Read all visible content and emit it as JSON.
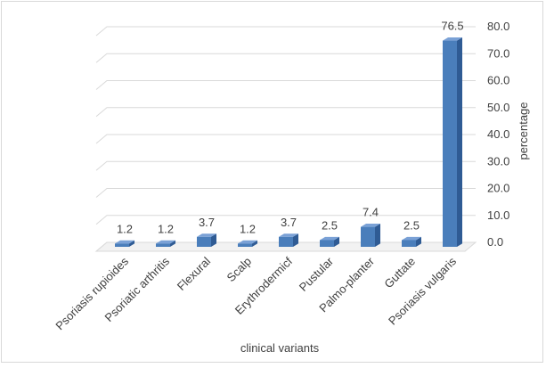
{
  "chart_data": {
    "type": "bar",
    "categories": [
      "Psoriasis rupioides",
      "Psoriatic arthritis",
      "Flexural",
      "Scalp",
      "Erythrodermicf",
      "Pustular",
      "Palmo-planter",
      "Guttate",
      "Psoriasis vulgaris"
    ],
    "values": [
      1.2,
      1.2,
      3.7,
      1.2,
      3.7,
      2.5,
      7.4,
      2.5,
      76.5
    ],
    "data_labels": [
      "1.2",
      "1.2",
      "3.7",
      "1.2",
      "3.7",
      "2.5",
      "7.4",
      "2.5",
      "76.5"
    ],
    "xlabel": "clinical variants",
    "ylabel": "percentage",
    "ylim": [
      0,
      80
    ],
    "y_ticks": [
      "0.0",
      "10.0",
      "20.0",
      "30.0",
      "40.0",
      "50.0",
      "60.0",
      "70.0",
      "80.0"
    ],
    "y_axis_side": "right",
    "grid": true,
    "bar_color": "#4a7ebb",
    "bar_top_color": "#7aa1d6",
    "bar_side_color": "#2f5b94"
  }
}
